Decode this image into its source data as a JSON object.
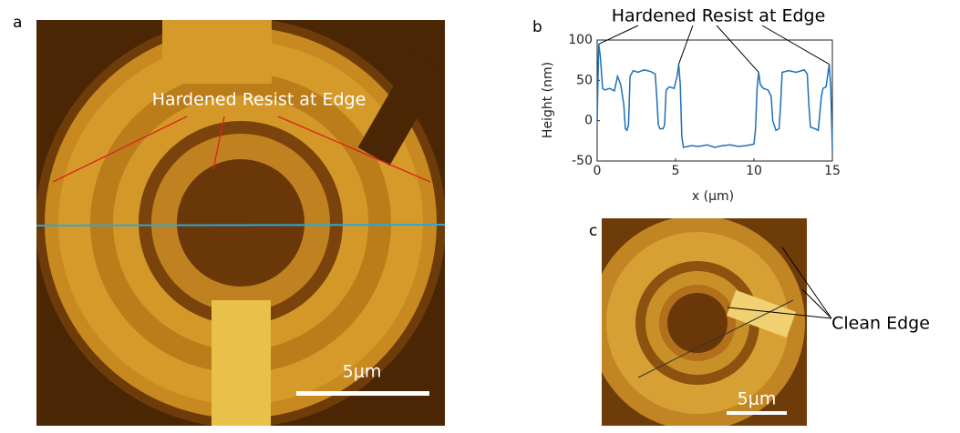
{
  "panels": {
    "a": {
      "label": "a",
      "annotation": "Hardened Resist at Edge",
      "scale_bar": "5μm"
    },
    "b": {
      "label": "b"
    },
    "c": {
      "label": "c",
      "annotation": "Clean Edge",
      "scale_bar": "5μm"
    }
  },
  "chart_data": {
    "type": "line",
    "title": "Hardened Resist at Edge",
    "x_label": "x (μm)",
    "y_label": "Height (nm)",
    "xlim": [
      0,
      15
    ],
    "ylim": [
      -50,
      100
    ],
    "xticks": [
      0,
      5,
      10,
      15
    ],
    "yticks": [
      -50,
      0,
      50,
      100
    ],
    "x": [
      0,
      0.1,
      0.2,
      0.35,
      0.5,
      0.8,
      1.1,
      1.3,
      1.5,
      1.7,
      1.8,
      1.9,
      2.0,
      2.1,
      2.3,
      2.6,
      3.0,
      3.4,
      3.7,
      3.8,
      3.9,
      4.0,
      4.2,
      4.3,
      4.4,
      4.6,
      4.9,
      5.1,
      5.2,
      5.3,
      5.4,
      5.5,
      6,
      6.5,
      7,
      7.5,
      8,
      8.5,
      9,
      9.5,
      10,
      10.1,
      10.2,
      10.3,
      10.4,
      10.6,
      10.9,
      11.1,
      11.2,
      11.4,
      11.6,
      11.7,
      11.8,
      12.2,
      12.7,
      13.2,
      13.4,
      13.5,
      13.6,
      13.9,
      14.1,
      14.3,
      14.4,
      14.6,
      14.8,
      14.9,
      15
    ],
    "series": [
      {
        "color": "#1f6fb5",
        "values": [
          0,
          95,
          80,
          40,
          38,
          40,
          37,
          55,
          45,
          20,
          -10,
          -12,
          -5,
          55,
          62,
          60,
          63,
          61,
          58,
          30,
          -5,
          -10,
          -10,
          -5,
          38,
          42,
          40,
          55,
          70,
          45,
          -20,
          -33,
          -31,
          -32,
          -30,
          -33,
          -31,
          -30,
          -32,
          -31,
          -29,
          -10,
          40,
          60,
          45,
          40,
          38,
          30,
          0,
          -12,
          -10,
          20,
          60,
          62,
          60,
          63,
          58,
          20,
          -8,
          -10,
          -12,
          30,
          40,
          42,
          70,
          40,
          -35
        ]
      }
    ]
  }
}
